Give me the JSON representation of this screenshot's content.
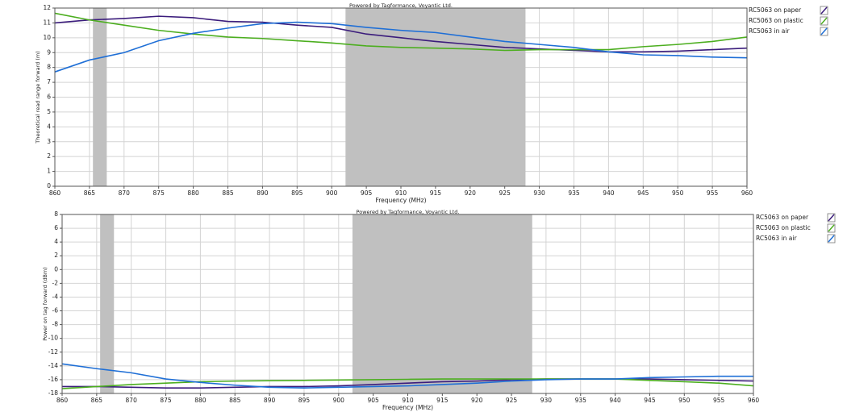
{
  "chart_data": [
    {
      "type": "line",
      "title": "Powered by Tagformance, Voyantic Ltd.",
      "xlabel": "Frequency (MHz)",
      "ylabel": "Theoretical read range forward (m)",
      "x": [
        860,
        865,
        870,
        875,
        880,
        885,
        890,
        895,
        900,
        905,
        910,
        915,
        920,
        925,
        930,
        935,
        940,
        945,
        950,
        955,
        960
      ],
      "series": [
        {
          "name": "RC5063 on paper",
          "color": "#3b1c7c",
          "values": [
            11.0,
            11.2,
            11.3,
            11.45,
            11.35,
            11.1,
            11.05,
            10.85,
            10.7,
            10.25,
            10.0,
            9.75,
            9.55,
            9.35,
            9.25,
            9.15,
            9.05,
            9.05,
            9.1,
            9.2,
            9.3
          ]
        },
        {
          "name": "RC5063 on plastic",
          "color": "#4cae1f",
          "values": [
            11.65,
            11.2,
            10.85,
            10.5,
            10.25,
            10.05,
            9.95,
            9.8,
            9.65,
            9.45,
            9.35,
            9.3,
            9.25,
            9.15,
            9.2,
            9.2,
            9.2,
            9.4,
            9.55,
            9.75,
            10.05
          ]
        },
        {
          "name": "RC5063 in air",
          "color": "#1f6fd6",
          "values": [
            7.7,
            8.5,
            9.0,
            9.8,
            10.3,
            10.65,
            10.95,
            11.05,
            10.95,
            10.7,
            10.5,
            10.35,
            10.05,
            9.75,
            9.55,
            9.35,
            9.05,
            8.85,
            8.8,
            8.7,
            8.65
          ]
        }
      ],
      "bands": [
        [
          865.5,
          867.5
        ],
        [
          902,
          928
        ]
      ],
      "band_color": "#c0c0c0",
      "xlim": [
        860,
        960
      ],
      "ylim": [
        0,
        12
      ],
      "xticks": [
        860,
        865,
        870,
        875,
        880,
        885,
        890,
        895,
        900,
        905,
        910,
        915,
        920,
        925,
        930,
        935,
        940,
        945,
        950,
        955,
        960
      ],
      "yticks": [
        0,
        1,
        2,
        3,
        4,
        5,
        6,
        7,
        8,
        9,
        10,
        11,
        12
      ],
      "grid": true
    },
    {
      "type": "line",
      "title": "Powered by Tagformance, Voyantic Ltd.",
      "xlabel": "Frequency (MHz)",
      "ylabel": "Power on tag forward (dBm)",
      "x": [
        860,
        865,
        870,
        875,
        880,
        885,
        890,
        895,
        900,
        905,
        910,
        915,
        920,
        925,
        930,
        935,
        940,
        945,
        950,
        955,
        960
      ],
      "series": [
        {
          "name": "RC5063 on paper",
          "color": "#3b1c7c",
          "values": [
            -17.0,
            -17.0,
            -17.1,
            -17.2,
            -17.2,
            -17.1,
            -17.0,
            -17.0,
            -16.9,
            -16.7,
            -16.5,
            -16.3,
            -16.2,
            -16.0,
            -15.9,
            -15.9,
            -15.9,
            -15.9,
            -16.0,
            -16.1,
            -16.2
          ]
        },
        {
          "name": "RC5063 on plastic",
          "color": "#4cae1f",
          "values": [
            -17.3,
            -17.0,
            -16.7,
            -16.5,
            -16.3,
            -16.2,
            -16.15,
            -16.1,
            -16.05,
            -16.0,
            -15.95,
            -15.9,
            -15.9,
            -15.9,
            -15.9,
            -15.9,
            -15.9,
            -16.1,
            -16.3,
            -16.5,
            -16.9
          ]
        },
        {
          "name": "RC5063 in air",
          "color": "#1f6fd6",
          "values": [
            -13.7,
            -14.4,
            -15.0,
            -15.9,
            -16.4,
            -16.8,
            -17.1,
            -17.2,
            -17.1,
            -17.0,
            -16.9,
            -16.7,
            -16.5,
            -16.2,
            -16.0,
            -15.9,
            -15.9,
            -15.7,
            -15.6,
            -15.5,
            -15.5
          ]
        }
      ],
      "bands": [
        [
          865.5,
          867.5
        ],
        [
          902,
          928
        ]
      ],
      "band_color": "#c0c0c0",
      "xlim": [
        860,
        960
      ],
      "ylim": [
        -18,
        8
      ],
      "xticks": [
        860,
        865,
        870,
        875,
        880,
        885,
        890,
        895,
        900,
        905,
        910,
        915,
        920,
        925,
        930,
        935,
        940,
        945,
        950,
        955,
        960
      ],
      "yticks": [
        -18,
        -16,
        -14,
        -12,
        -10,
        -8,
        -6,
        -4,
        -2,
        0,
        2,
        4,
        6,
        8
      ],
      "grid": true
    }
  ]
}
